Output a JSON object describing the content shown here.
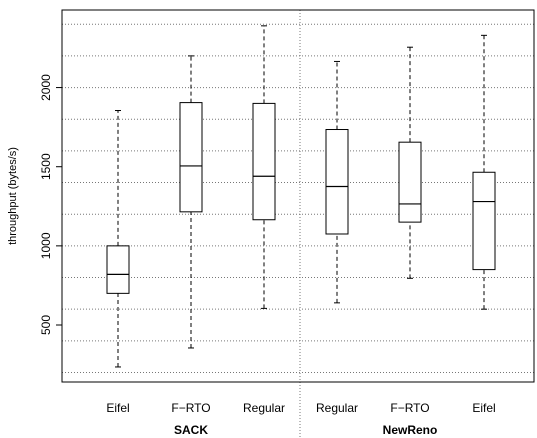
{
  "chart_data": {
    "type": "boxplot",
    "title": "",
    "ylabel": "throughput (bytes/s)",
    "ylim": [
      140,
      2490
    ],
    "yticks": [
      500,
      1000,
      1500,
      2000
    ],
    "ytick_labels": [
      "500",
      "1000",
      "1500",
      "2000"
    ],
    "gridlines": [
      200,
      400,
      600,
      800,
      1000,
      1200,
      1400,
      1600,
      1800,
      2000,
      2200,
      2400
    ],
    "grid": "horizontal dotted",
    "groups": [
      {
        "label": "SACK",
        "categories": [
          "Eifel",
          "F−RTO",
          "Regular"
        ]
      },
      {
        "label": "NewReno",
        "categories": [
          "Regular",
          "F−RTO",
          "Eifel"
        ]
      }
    ],
    "boxes": [
      {
        "group": "SACK",
        "label": "Eifel",
        "whisker_low": 235,
        "q1": 700,
        "median": 820,
        "q3": 1000,
        "whisker_high": 1855
      },
      {
        "group": "SACK",
        "label": "F−RTO",
        "whisker_low": 355,
        "q1": 1215,
        "median": 1505,
        "q3": 1905,
        "whisker_high": 2200
      },
      {
        "group": "SACK",
        "label": "Regular",
        "whisker_low": 605,
        "q1": 1165,
        "median": 1440,
        "q3": 1900,
        "whisker_high": 2390
      },
      {
        "group": "NewReno",
        "label": "Regular",
        "whisker_low": 640,
        "q1": 1075,
        "median": 1375,
        "q3": 1735,
        "whisker_high": 2165
      },
      {
        "group": "NewReno",
        "label": "F−RTO",
        "whisker_low": 795,
        "q1": 1150,
        "median": 1265,
        "q3": 1655,
        "whisker_high": 2255
      },
      {
        "group": "NewReno",
        "label": "Eifel",
        "whisker_low": 600,
        "q1": 850,
        "median": 1280,
        "q3": 1465,
        "whisker_high": 2330
      }
    ]
  }
}
